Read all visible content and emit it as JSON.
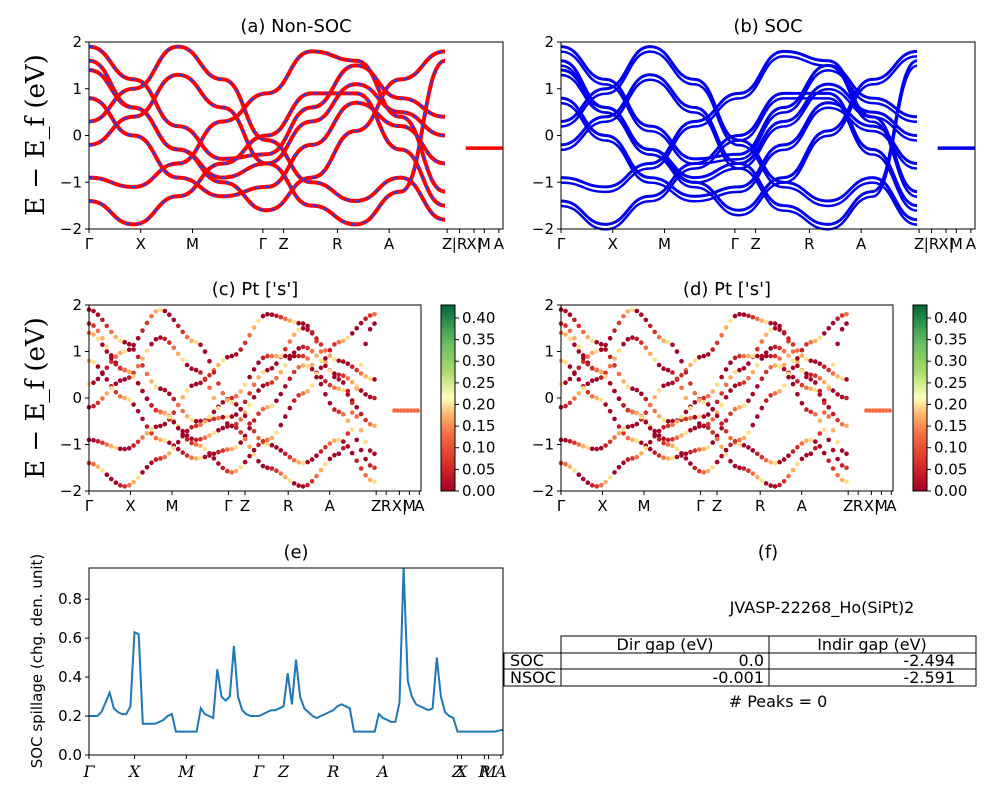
{
  "ylabel_energy": "E − E_f (eV)",
  "kpath_labels": [
    "Γ",
    "X",
    "M",
    "Γ",
    "Z",
    "R",
    "A",
    "Z",
    "|R",
    "X|",
    "M",
    "A"
  ],
  "panels": {
    "a": {
      "title": "(a) Non-SOC",
      "yticks": [
        "2",
        "1",
        "0",
        "−1",
        "−2"
      ],
      "xticks": [
        "Γ",
        "X",
        "M",
        "Γ",
        "Z",
        "R",
        "A",
        "Z",
        "|R",
        "X|",
        "M",
        "A"
      ]
    },
    "b": {
      "title": "(b) SOC",
      "yticks": [
        "2",
        "1",
        "0",
        "−1",
        "−2"
      ],
      "xticks": [
        "Γ",
        "X",
        "M",
        "Γ",
        "Z",
        "R",
        "A",
        "Z",
        "|R",
        "X|",
        "M",
        "A"
      ]
    },
    "c": {
      "title": "(c)  Pt ['s']",
      "yticks": [
        "2",
        "1",
        "0",
        "−1",
        "−2"
      ],
      "xticks": [
        "Γ",
        "X",
        "M",
        "Γ",
        "Z",
        "R",
        "A",
        "Z",
        "R",
        "X|",
        "M",
        "A"
      ],
      "colorbar_ticks": [
        "0.40",
        "0.35",
        "0.30",
        "0.25",
        "0.20",
        "0.15",
        "0.10",
        "0.05",
        "0.00"
      ]
    },
    "d": {
      "title": "(d) Pt ['s']",
      "yticks": [
        "2",
        "1",
        "0",
        "−1",
        "−2"
      ],
      "xticks": [
        "Γ",
        "X",
        "M",
        "Γ",
        "Z",
        "R",
        "A",
        "Z",
        "R",
        "X|",
        "M",
        "A"
      ],
      "colorbar_ticks": [
        "0.40",
        "0.35",
        "0.30",
        "0.25",
        "0.20",
        "0.15",
        "0.10",
        "0.05",
        "0.00"
      ]
    },
    "e": {
      "title": "(e)",
      "ylabel": "SOC spillage (chg. den. unit)",
      "yticks": [
        "0.8",
        "0.6",
        "0.4",
        "0.2",
        "0.0"
      ],
      "xticks": [
        "Γ",
        "X",
        "M",
        "Γ",
        "Z",
        "R",
        "A",
        "Z",
        "X",
        "R",
        "M",
        "A"
      ]
    },
    "f": {
      "title": "(f)",
      "material": "JVASP-22268_Ho(SiPt)2",
      "table": {
        "headers": [
          "Dir gap (eV)",
          "Indir gap (eV)"
        ],
        "rows": [
          {
            "label": "SOC",
            "dir": "0.0",
            "indir": "-2.494"
          },
          {
            "label": "NSOC",
            "dir": "-0.001",
            "indir": "-2.591"
          }
        ]
      },
      "peaks": "# Peaks = 0"
    }
  },
  "colors": {
    "nsoc_band": "#ff0000",
    "nsoc_dash": "#1f3cff",
    "soc_band": "#0000ee",
    "spillage": "#1f77b4"
  },
  "chart_data": [
    {
      "type": "line",
      "title": "(a) Non-SOC",
      "ylabel": "E − E_f (eV)",
      "ylim": [
        -2,
        2
      ],
      "xticklabels": [
        "Γ",
        "X",
        "M",
        "Γ",
        "Z",
        "R",
        "A",
        "Z",
        "|R",
        "X|",
        "M",
        "A"
      ],
      "series": [
        {
          "values": [
            1.9,
            1.2,
            0.2,
            -0.5,
            -0.4,
            0.6,
            1.5,
            0.8,
            0.4
          ]
        },
        {
          "values": [
            1.6,
            0.6,
            -0.3,
            -0.9,
            -0.6,
            0.3,
            1.1,
            0.5,
            0.0
          ]
        },
        {
          "values": [
            0.8,
            0.0,
            -0.9,
            -1.3,
            -1.1,
            -0.2,
            0.7,
            0.2,
            -0.6
          ]
        },
        {
          "values": [
            -0.9,
            -1.1,
            -0.6,
            0.3,
            0.9,
            1.8,
            1.6,
            0.4,
            -1.2
          ]
        },
        {
          "values": [
            -1.4,
            -1.9,
            -1.3,
            -0.6,
            0.0,
            0.9,
            0.9,
            -0.3,
            -1.5
          ]
        },
        {
          "values": [
            0.3,
            1.0,
            1.9,
            1.2,
            -0.1,
            -1.0,
            -1.4,
            -0.9,
            -1.8
          ]
        },
        {
          "values": [
            -0.2,
            0.4,
            1.3,
            0.6,
            -0.6,
            -1.5,
            -1.9,
            -1.2,
            1.6
          ]
        },
        {
          "values": [
            1.4,
            0.6,
            -0.3,
            -1.0,
            -1.6,
            -0.9,
            0.1,
            1.2,
            1.8
          ]
        }
      ]
    },
    {
      "type": "line",
      "title": "(b) SOC",
      "ylim": [
        -2,
        2
      ],
      "xticklabels": [
        "Γ",
        "X",
        "M",
        "Γ",
        "Z",
        "R",
        "A",
        "Z",
        "|R",
        "X|",
        "M",
        "A"
      ],
      "series": [
        {
          "values": [
            1.9,
            1.2,
            0.2,
            -0.5,
            -0.4,
            0.6,
            1.5,
            0.8,
            0.4
          ]
        },
        {
          "values": [
            1.6,
            0.6,
            -0.3,
            -0.9,
            -0.6,
            0.3,
            1.1,
            0.5,
            0.0
          ]
        },
        {
          "values": [
            0.8,
            0.0,
            -0.9,
            -1.3,
            -1.1,
            -0.2,
            0.7,
            0.2,
            -0.6
          ]
        },
        {
          "values": [
            -0.9,
            -1.1,
            -0.6,
            0.3,
            0.9,
            1.8,
            1.6,
            0.4,
            -1.2
          ]
        },
        {
          "values": [
            -1.4,
            -1.9,
            -1.3,
            -0.6,
            0.0,
            0.9,
            0.9,
            -0.3,
            -1.5
          ]
        },
        {
          "values": [
            0.3,
            1.0,
            1.9,
            1.2,
            -0.1,
            -1.0,
            -1.4,
            -0.9,
            -1.8
          ]
        },
        {
          "values": [
            -0.2,
            0.4,
            1.3,
            0.6,
            -0.6,
            -1.5,
            -1.9,
            -1.2,
            1.6
          ]
        },
        {
          "values": [
            1.4,
            0.6,
            -0.3,
            -1.0,
            -1.6,
            -0.9,
            0.1,
            1.2,
            1.8
          ]
        }
      ]
    },
    {
      "type": "scatter",
      "title": "(c)  Pt ['s']",
      "ylim": [
        -2,
        2
      ],
      "colorbar_range": [
        0.0,
        0.43
      ],
      "xticklabels": [
        "Γ",
        "X",
        "M",
        "Γ",
        "Z",
        "R",
        "A",
        "Z",
        "R",
        "X|",
        "M",
        "A"
      ]
    },
    {
      "type": "scatter",
      "title": "(d) Pt ['s']",
      "ylim": [
        -2,
        2
      ],
      "colorbar_range": [
        0.0,
        0.43
      ],
      "xticklabels": [
        "Γ",
        "X",
        "M",
        "Γ",
        "Z",
        "R",
        "A",
        "Z",
        "R",
        "X|",
        "M",
        "A"
      ]
    },
    {
      "type": "line",
      "title": "(e)",
      "ylabel": "SOC spillage (chg. den. unit)",
      "ylim": [
        0,
        0.96
      ],
      "xticklabels": [
        "Γ",
        "X",
        "M",
        "Γ",
        "Z",
        "R",
        "A",
        "Z",
        "X",
        "R",
        "M",
        "A"
      ],
      "x": [
        0,
        0.02,
        0.03,
        0.05,
        0.06,
        0.07,
        0.08,
        0.09,
        0.1,
        0.11,
        0.12,
        0.13,
        0.14,
        0.15,
        0.16,
        0.17,
        0.18,
        0.19,
        0.2,
        0.21,
        0.22,
        0.23,
        0.24,
        0.25,
        0.26,
        0.27,
        0.28,
        0.29,
        0.3,
        0.31,
        0.32,
        0.33,
        0.34,
        0.35,
        0.36,
        0.37,
        0.38,
        0.39,
        0.4,
        0.41,
        0.42,
        0.43,
        0.44,
        0.45,
        0.46,
        0.47,
        0.48,
        0.49,
        0.5,
        0.51,
        0.52,
        0.53,
        0.54,
        0.55,
        0.56,
        0.57,
        0.58,
        0.59,
        0.6,
        0.61,
        0.62,
        0.63,
        0.64,
        0.65,
        0.66,
        0.67,
        0.68,
        0.69,
        0.7,
        0.71,
        0.72,
        0.73,
        0.74,
        0.75,
        0.76,
        0.77,
        0.78,
        0.79,
        0.8,
        0.81,
        0.82,
        0.83,
        0.84,
        0.85,
        0.86,
        0.87,
        0.88,
        0.89,
        0.9,
        0.91,
        0.92,
        0.93,
        0.94,
        0.95,
        0.96,
        0.97,
        0.98,
        1.0
      ],
      "series": [
        {
          "values": [
            0.2,
            0.2,
            0.22,
            0.32,
            0.24,
            0.22,
            0.21,
            0.21,
            0.25,
            0.63,
            0.62,
            0.16,
            0.16,
            0.16,
            0.16,
            0.17,
            0.18,
            0.2,
            0.21,
            0.12,
            0.12,
            0.12,
            0.12,
            0.12,
            0.12,
            0.24,
            0.21,
            0.2,
            0.19,
            0.44,
            0.3,
            0.28,
            0.3,
            0.56,
            0.3,
            0.23,
            0.21,
            0.2,
            0.2,
            0.2,
            0.21,
            0.22,
            0.23,
            0.23,
            0.24,
            0.25,
            0.42,
            0.26,
            0.49,
            0.3,
            0.24,
            0.22,
            0.2,
            0.19,
            0.2,
            0.21,
            0.22,
            0.23,
            0.25,
            0.26,
            0.25,
            0.24,
            0.12,
            0.12,
            0.12,
            0.12,
            0.12,
            0.12,
            0.21,
            0.19,
            0.18,
            0.17,
            0.17,
            0.27,
            0.96,
            0.38,
            0.3,
            0.26,
            0.25,
            0.24,
            0.23,
            0.24,
            0.5,
            0.3,
            0.22,
            0.2,
            0.19,
            0.12,
            0.12,
            0.12,
            0.12,
            0.12,
            0.12,
            0.12,
            0.12,
            0.12,
            0.12,
            0.13
          ]
        }
      ]
    }
  ]
}
